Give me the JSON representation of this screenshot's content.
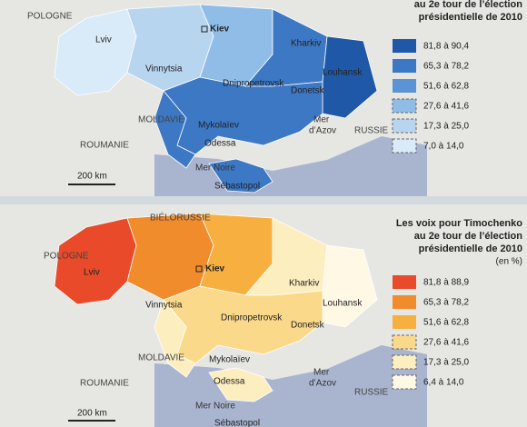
{
  "top_map": {
    "title_lines": [
      "au 2e tour de l’élection",
      "présidentielle de 2010"
    ],
    "legend": [
      {
        "label": "81,8 à 90,4",
        "color": "#2058a8"
      },
      {
        "label": "65,3 à 78,2",
        "color": "#3d78c4"
      },
      {
        "label": "51,6 à 62,8",
        "color": "#5a94d4"
      },
      {
        "label": "27,6 à 41,6",
        "color": "#8fbde8"
      },
      {
        "label": "17,3 à 25,0",
        "color": "#b8d5f0"
      },
      {
        "label": "7,0 à 14,0",
        "color": "#d9eaf8"
      }
    ],
    "countries": [
      "POLOGNE",
      "MOLDAVIE",
      "ROUMANIE",
      "RUSSIE"
    ],
    "seas": [
      "Mer Noire",
      "Mer",
      "d’Azov"
    ],
    "cities": [
      "Kiev",
      "Lviv",
      "Vinnytsia",
      "Kharkiv",
      "Louhansk",
      "Dnipropetrovsk",
      "Donetsk",
      "Mykolaïev",
      "Odessa",
      "Sébastopol"
    ],
    "scale": "200 km"
  },
  "bottom_map": {
    "title_lines": [
      "Les voix pour Timochenko",
      "au 2e tour de l’élection",
      "présidentielle de 2010"
    ],
    "unit": "(en %)",
    "legend": [
      {
        "label": "81,8 à 88,9",
        "color": "#e84a2a"
      },
      {
        "label": "65,3 à 78,2",
        "color": "#f08c2c"
      },
      {
        "label": "51,6 à 62,8",
        "color": "#f7b040"
      },
      {
        "label": "27,6 à 41,6",
        "color": "#fbd98a"
      },
      {
        "label": "17,3 à 25,0",
        "color": "#fdeec0"
      },
      {
        "label": "6,4 à 14,0",
        "color": "#fef8e4"
      }
    ],
    "countries": [
      "BIÉLORUSSIE",
      "POLOGNE",
      "MOLDAVIE",
      "ROUMANIE",
      "RUSSIE"
    ],
    "seas": [
      "Mer Noire",
      "Mer",
      "d’Azov"
    ],
    "cities": [
      "Kiev",
      "Lviv",
      "Vinnytsia",
      "Kharkiv",
      "Louhansk",
      "Dnipropetrovsk",
      "Donetsk",
      "Mykolaïev",
      "Odessa",
      "Sébastopol"
    ],
    "scale": "200 km"
  }
}
